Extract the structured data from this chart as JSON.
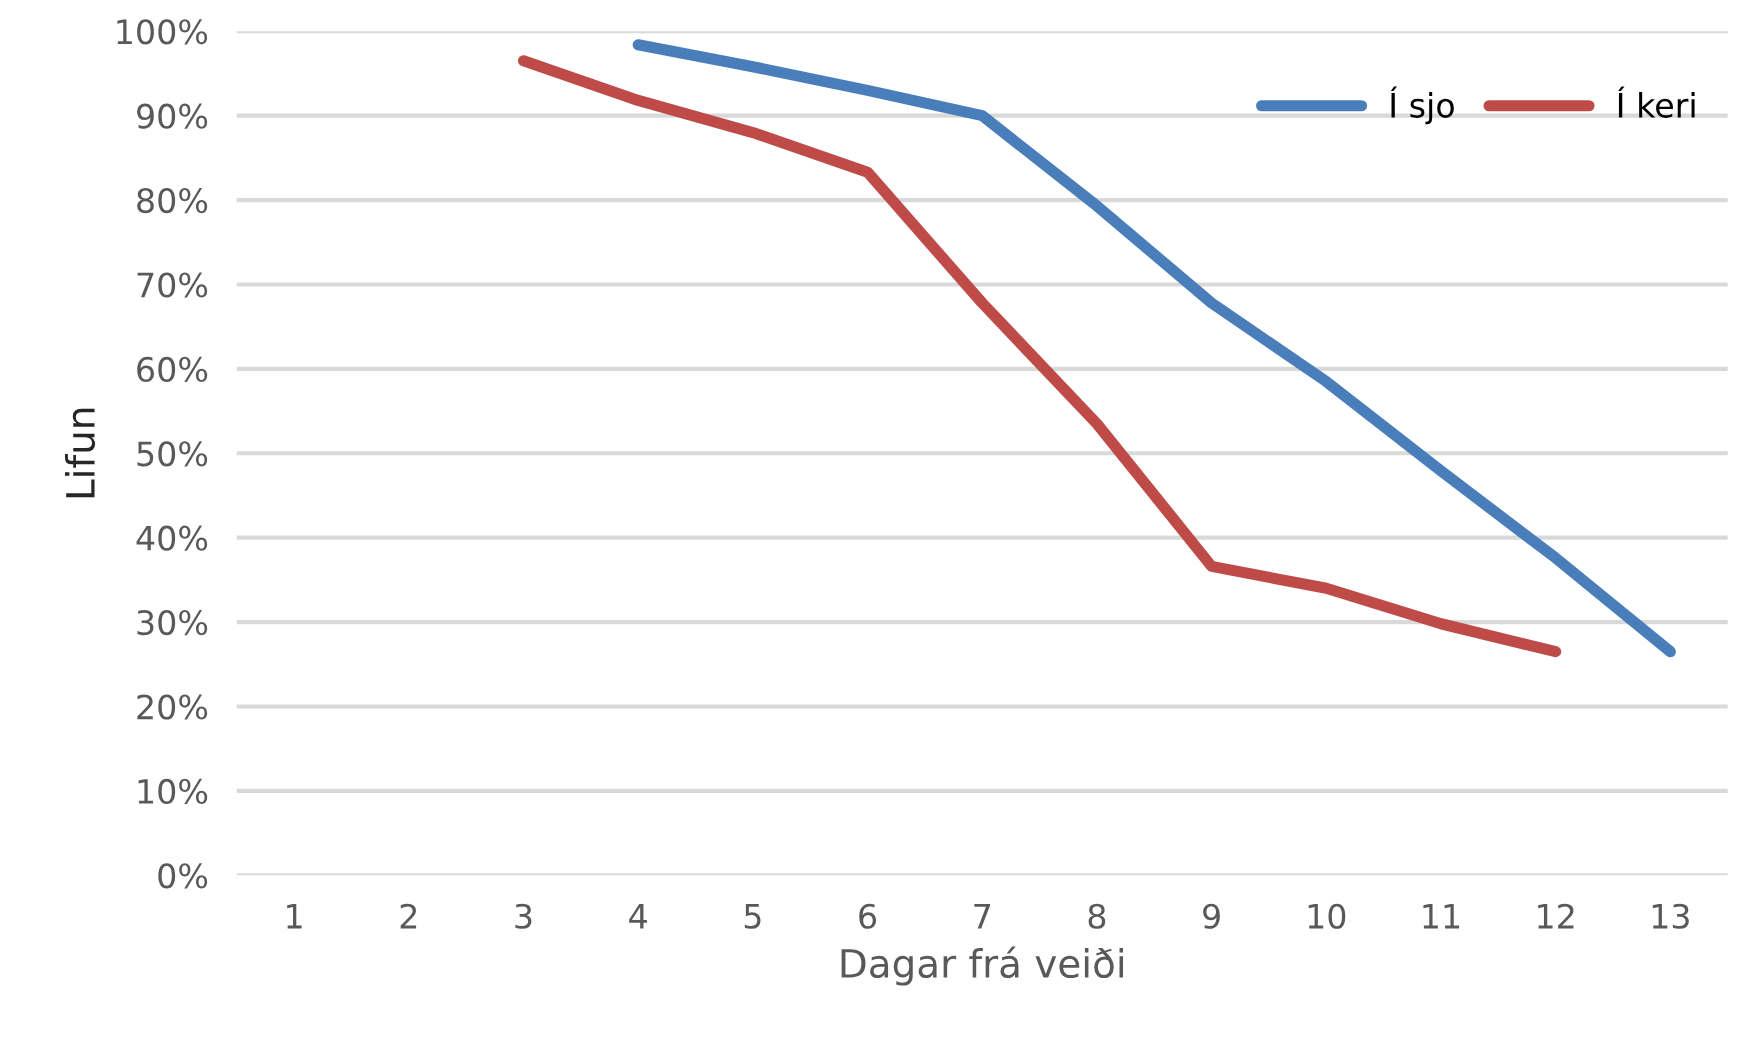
{
  "chart_data": {
    "type": "line",
    "xlabel": "Dagar frá veiði",
    "ylabel": "Lifun",
    "categories": [
      "1",
      "2",
      "3",
      "4",
      "5",
      "6",
      "7",
      "8",
      "9",
      "10",
      "11",
      "12",
      "13"
    ],
    "series": [
      {
        "name": "Í sjo",
        "color": "#4a7ebb",
        "values": [
          null,
          null,
          null,
          98.4,
          95.8,
          93,
          90,
          79.3,
          67.8,
          58.5,
          47.9,
          37.6,
          26.5
        ]
      },
      {
        "name": "Í keri",
        "color": "#be4b48",
        "values": [
          null,
          null,
          96.5,
          91.8,
          88,
          83.3,
          67.8,
          53.5,
          36.6,
          34,
          29.8,
          26.5,
          null
        ]
      }
    ],
    "ylim": [
      0,
      100
    ],
    "yticks": [
      {
        "value": 0,
        "label": "0%"
      },
      {
        "value": 10,
        "label": "10%"
      },
      {
        "value": 20,
        "label": "20%"
      },
      {
        "value": 30,
        "label": "30%"
      },
      {
        "value": 40,
        "label": "40%"
      },
      {
        "value": 50,
        "label": "50%"
      },
      {
        "value": 60,
        "label": "60%"
      },
      {
        "value": 70,
        "label": "70%"
      },
      {
        "value": 80,
        "label": "80%"
      },
      {
        "value": 90,
        "label": "90%"
      },
      {
        "value": 100,
        "label": "100%"
      }
    ],
    "grid": "y",
    "legend": "top right",
    "marker": "none",
    "line_style": "solid"
  }
}
